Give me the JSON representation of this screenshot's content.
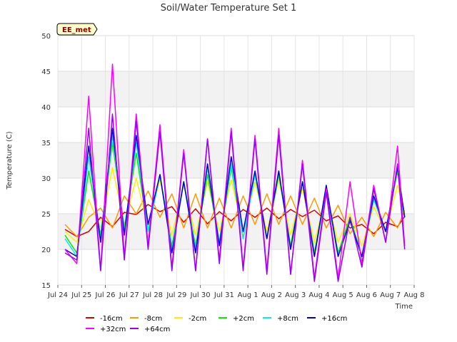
{
  "chart_data": {
    "type": "line",
    "title": "Soil/Water Temperature Set 1",
    "xlabel": "Time",
    "ylabel": "Temperature (C)",
    "site_tag": "EE_met",
    "ylim": [
      15,
      50
    ],
    "yticks": [
      15,
      20,
      25,
      30,
      35,
      40,
      45,
      50
    ],
    "xlim": [
      0,
      15
    ],
    "xticks": [
      "Jul 24",
      "Jul 25",
      "Jul 26",
      "Jul 27",
      "Jul 28",
      "Jul 29",
      "Jul 30",
      "Jul 31",
      "Aug 1",
      "Aug 2",
      "Aug 3",
      "Aug 4",
      "Aug 5",
      "Aug 6",
      "Aug 7",
      "Aug 8"
    ],
    "grid": true,
    "shaded_bands": [
      [
        20,
        25
      ],
      [
        30,
        35
      ],
      [
        40,
        45
      ]
    ],
    "legend_position": "bottom",
    "series": [
      {
        "name": "-16cm",
        "color": "#dd0000",
        "points": [
          [
            0.3,
            22.8
          ],
          [
            0.8,
            21.8
          ],
          [
            1.3,
            22.5
          ],
          [
            1.8,
            24.5
          ],
          [
            2.3,
            23.2
          ],
          [
            2.8,
            25.2
          ],
          [
            3.3,
            24.9
          ],
          [
            3.8,
            26.3
          ],
          [
            4.3,
            25.3
          ],
          [
            4.8,
            26.0
          ],
          [
            5.3,
            23.8
          ],
          [
            5.8,
            25.7
          ],
          [
            6.3,
            23.6
          ],
          [
            6.8,
            25.3
          ],
          [
            7.3,
            24.0
          ],
          [
            7.8,
            25.6
          ],
          [
            8.3,
            24.5
          ],
          [
            8.8,
            25.8
          ],
          [
            9.3,
            24.3
          ],
          [
            9.8,
            25.6
          ],
          [
            10.3,
            24.6
          ],
          [
            10.8,
            25.5
          ],
          [
            11.3,
            24.0
          ],
          [
            11.8,
            24.7
          ],
          [
            12.3,
            23.0
          ],
          [
            12.8,
            23.5
          ],
          [
            13.3,
            22.2
          ],
          [
            13.8,
            23.8
          ],
          [
            14.3,
            23.2
          ],
          [
            14.6,
            24.6
          ]
        ]
      },
      {
        "name": "-8cm",
        "color": "#ff9900",
        "points": [
          [
            0.3,
            23.5
          ],
          [
            0.8,
            21.8
          ],
          [
            1.3,
            24.5
          ],
          [
            1.8,
            25.8
          ],
          [
            2.3,
            23.0
          ],
          [
            2.8,
            27.5
          ],
          [
            3.3,
            25.0
          ],
          [
            3.8,
            28.2
          ],
          [
            4.3,
            24.5
          ],
          [
            4.8,
            27.8
          ],
          [
            5.3,
            23.0
          ],
          [
            5.8,
            27.8
          ],
          [
            6.3,
            23.0
          ],
          [
            6.8,
            27.2
          ],
          [
            7.3,
            23.0
          ],
          [
            7.8,
            27.5
          ],
          [
            8.3,
            23.5
          ],
          [
            8.8,
            27.8
          ],
          [
            9.3,
            23.5
          ],
          [
            9.8,
            27.5
          ],
          [
            10.3,
            23.5
          ],
          [
            10.8,
            27.2
          ],
          [
            11.3,
            23.0
          ],
          [
            11.8,
            26.2
          ],
          [
            12.3,
            22.2
          ],
          [
            12.8,
            24.5
          ],
          [
            13.3,
            21.8
          ],
          [
            13.8,
            25.2
          ],
          [
            14.3,
            23.0
          ],
          [
            14.6,
            25.5
          ]
        ]
      },
      {
        "name": "-2cm",
        "color": "#ffee00",
        "points": [
          [
            0.3,
            22.5
          ],
          [
            0.8,
            21.0
          ],
          [
            1.3,
            27.0
          ],
          [
            1.8,
            23.0
          ],
          [
            2.3,
            31.5
          ],
          [
            2.8,
            23.5
          ],
          [
            3.3,
            30.0
          ],
          [
            3.8,
            23.0
          ],
          [
            4.3,
            29.8
          ],
          [
            4.8,
            22.0
          ],
          [
            5.3,
            29.0
          ],
          [
            5.8,
            22.0
          ],
          [
            6.3,
            29.5
          ],
          [
            6.8,
            22.5
          ],
          [
            7.3,
            29.8
          ],
          [
            7.8,
            22.5
          ],
          [
            8.3,
            29.5
          ],
          [
            8.8,
            22.5
          ],
          [
            9.3,
            29.8
          ],
          [
            9.8,
            22.0
          ],
          [
            10.3,
            28.5
          ],
          [
            10.8,
            21.0
          ],
          [
            11.3,
            27.5
          ],
          [
            11.8,
            21.0
          ],
          [
            12.3,
            25.0
          ],
          [
            12.8,
            20.5
          ],
          [
            13.3,
            26.0
          ],
          [
            13.8,
            22.5
          ],
          [
            14.3,
            29.0
          ],
          [
            14.6,
            25.0
          ]
        ]
      },
      {
        "name": "+2cm",
        "color": "#00ee00",
        "points": [
          [
            0.3,
            22.0
          ],
          [
            0.8,
            19.5
          ],
          [
            1.3,
            31.0
          ],
          [
            1.8,
            22.0
          ],
          [
            2.3,
            35.0
          ],
          [
            2.8,
            23.0
          ],
          [
            3.3,
            33.5
          ],
          [
            3.8,
            22.5
          ],
          [
            4.3,
            30.5
          ],
          [
            4.8,
            20.5
          ],
          [
            5.3,
            29.5
          ],
          [
            5.8,
            20.5
          ],
          [
            6.3,
            30.5
          ],
          [
            6.8,
            21.0
          ],
          [
            7.3,
            31.5
          ],
          [
            7.8,
            21.5
          ],
          [
            8.3,
            30.5
          ],
          [
            8.8,
            21.5
          ],
          [
            9.3,
            30.5
          ],
          [
            9.8,
            20.5
          ],
          [
            10.3,
            29.5
          ],
          [
            10.8,
            19.5
          ],
          [
            11.3,
            28.5
          ],
          [
            11.8,
            19.5
          ],
          [
            12.3,
            24.5
          ],
          [
            12.8,
            19.0
          ],
          [
            13.3,
            27.0
          ],
          [
            13.8,
            22.5
          ],
          [
            14.3,
            31.0
          ],
          [
            14.6,
            24.5
          ]
        ]
      },
      {
        "name": "+8cm",
        "color": "#00eeee",
        "points": [
          [
            0.3,
            21.5
          ],
          [
            0.8,
            19.0
          ],
          [
            1.3,
            33.0
          ],
          [
            1.8,
            21.5
          ],
          [
            2.3,
            36.0
          ],
          [
            2.8,
            22.5
          ],
          [
            3.3,
            35.0
          ],
          [
            3.8,
            22.5
          ],
          [
            4.3,
            30.5
          ],
          [
            4.8,
            20.0
          ],
          [
            5.3,
            29.5
          ],
          [
            5.8,
            20.0
          ],
          [
            6.3,
            31.5
          ],
          [
            6.8,
            21.0
          ],
          [
            7.3,
            32.0
          ],
          [
            7.8,
            21.5
          ],
          [
            8.3,
            30.5
          ],
          [
            8.8,
            21.5
          ],
          [
            9.3,
            31.0
          ],
          [
            9.8,
            20.0
          ],
          [
            10.3,
            29.5
          ],
          [
            10.8,
            19.0
          ],
          [
            11.3,
            28.5
          ],
          [
            11.8,
            19.0
          ],
          [
            12.3,
            24.0
          ],
          [
            12.8,
            19.0
          ],
          [
            13.3,
            27.0
          ],
          [
            13.8,
            22.5
          ],
          [
            14.3,
            31.5
          ],
          [
            14.6,
            24.5
          ]
        ]
      },
      {
        "name": "+16cm",
        "color": "#0000cc",
        "points": [
          [
            0.3,
            20.0
          ],
          [
            0.8,
            19.0
          ],
          [
            1.3,
            34.5
          ],
          [
            1.8,
            21.0
          ],
          [
            2.3,
            37.0
          ],
          [
            2.8,
            22.0
          ],
          [
            3.3,
            36.0
          ],
          [
            3.8,
            23.5
          ],
          [
            4.3,
            30.5
          ],
          [
            4.8,
            19.5
          ],
          [
            5.3,
            29.5
          ],
          [
            5.8,
            19.5
          ],
          [
            6.3,
            32.0
          ],
          [
            6.8,
            20.5
          ],
          [
            7.3,
            33.0
          ],
          [
            7.8,
            22.5
          ],
          [
            8.3,
            31.0
          ],
          [
            8.8,
            21.5
          ],
          [
            9.3,
            31.0
          ],
          [
            9.8,
            20.0
          ],
          [
            10.3,
            29.5
          ],
          [
            10.8,
            19.0
          ],
          [
            11.3,
            29.0
          ],
          [
            11.8,
            19.0
          ],
          [
            12.3,
            24.0
          ],
          [
            12.8,
            19.0
          ],
          [
            13.3,
            27.5
          ],
          [
            13.8,
            22.5
          ],
          [
            14.3,
            31.5
          ],
          [
            14.6,
            24.5
          ]
        ]
      },
      {
        "name": "+32cm",
        "color": "#ff00ff",
        "points": [
          [
            0.3,
            20.0
          ],
          [
            0.8,
            18.0
          ],
          [
            1.3,
            41.5
          ],
          [
            1.8,
            17.0
          ],
          [
            2.3,
            46.0
          ],
          [
            2.8,
            19.0
          ],
          [
            3.3,
            39.0
          ],
          [
            3.8,
            20.5
          ],
          [
            4.3,
            37.5
          ],
          [
            4.8,
            17.5
          ],
          [
            5.3,
            34.0
          ],
          [
            5.8,
            17.0
          ],
          [
            6.3,
            35.5
          ],
          [
            6.8,
            18.5
          ],
          [
            7.3,
            37.0
          ],
          [
            7.8,
            17.5
          ],
          [
            8.3,
            36.0
          ],
          [
            8.8,
            17.0
          ],
          [
            9.3,
            37.0
          ],
          [
            9.8,
            16.5
          ],
          [
            10.3,
            32.5
          ],
          [
            10.8,
            16.0
          ],
          [
            11.3,
            28.5
          ],
          [
            11.8,
            16.0
          ],
          [
            12.3,
            29.5
          ],
          [
            12.8,
            18.0
          ],
          [
            13.3,
            29.0
          ],
          [
            13.8,
            21.0
          ],
          [
            14.3,
            34.5
          ],
          [
            14.6,
            20.5
          ]
        ]
      },
      {
        "name": "+64cm",
        "color": "#9900ff",
        "points": [
          [
            0.3,
            19.5
          ],
          [
            0.8,
            18.5
          ],
          [
            1.3,
            37.0
          ],
          [
            1.8,
            17.0
          ],
          [
            2.3,
            39.0
          ],
          [
            2.8,
            18.5
          ],
          [
            3.3,
            38.0
          ],
          [
            3.8,
            20.0
          ],
          [
            4.3,
            36.5
          ],
          [
            4.8,
            17.0
          ],
          [
            5.3,
            33.5
          ],
          [
            5.8,
            17.0
          ],
          [
            6.3,
            35.5
          ],
          [
            6.8,
            18.0
          ],
          [
            7.3,
            36.5
          ],
          [
            7.8,
            17.0
          ],
          [
            8.3,
            35.5
          ],
          [
            8.8,
            16.5
          ],
          [
            9.3,
            36.0
          ],
          [
            9.8,
            16.5
          ],
          [
            10.3,
            32.0
          ],
          [
            10.8,
            15.5
          ],
          [
            11.3,
            28.0
          ],
          [
            11.8,
            15.5
          ],
          [
            12.3,
            24.5
          ],
          [
            12.8,
            17.5
          ],
          [
            13.3,
            28.5
          ],
          [
            13.8,
            21.0
          ],
          [
            14.3,
            32.0
          ],
          [
            14.6,
            20.0
          ]
        ]
      }
    ]
  }
}
